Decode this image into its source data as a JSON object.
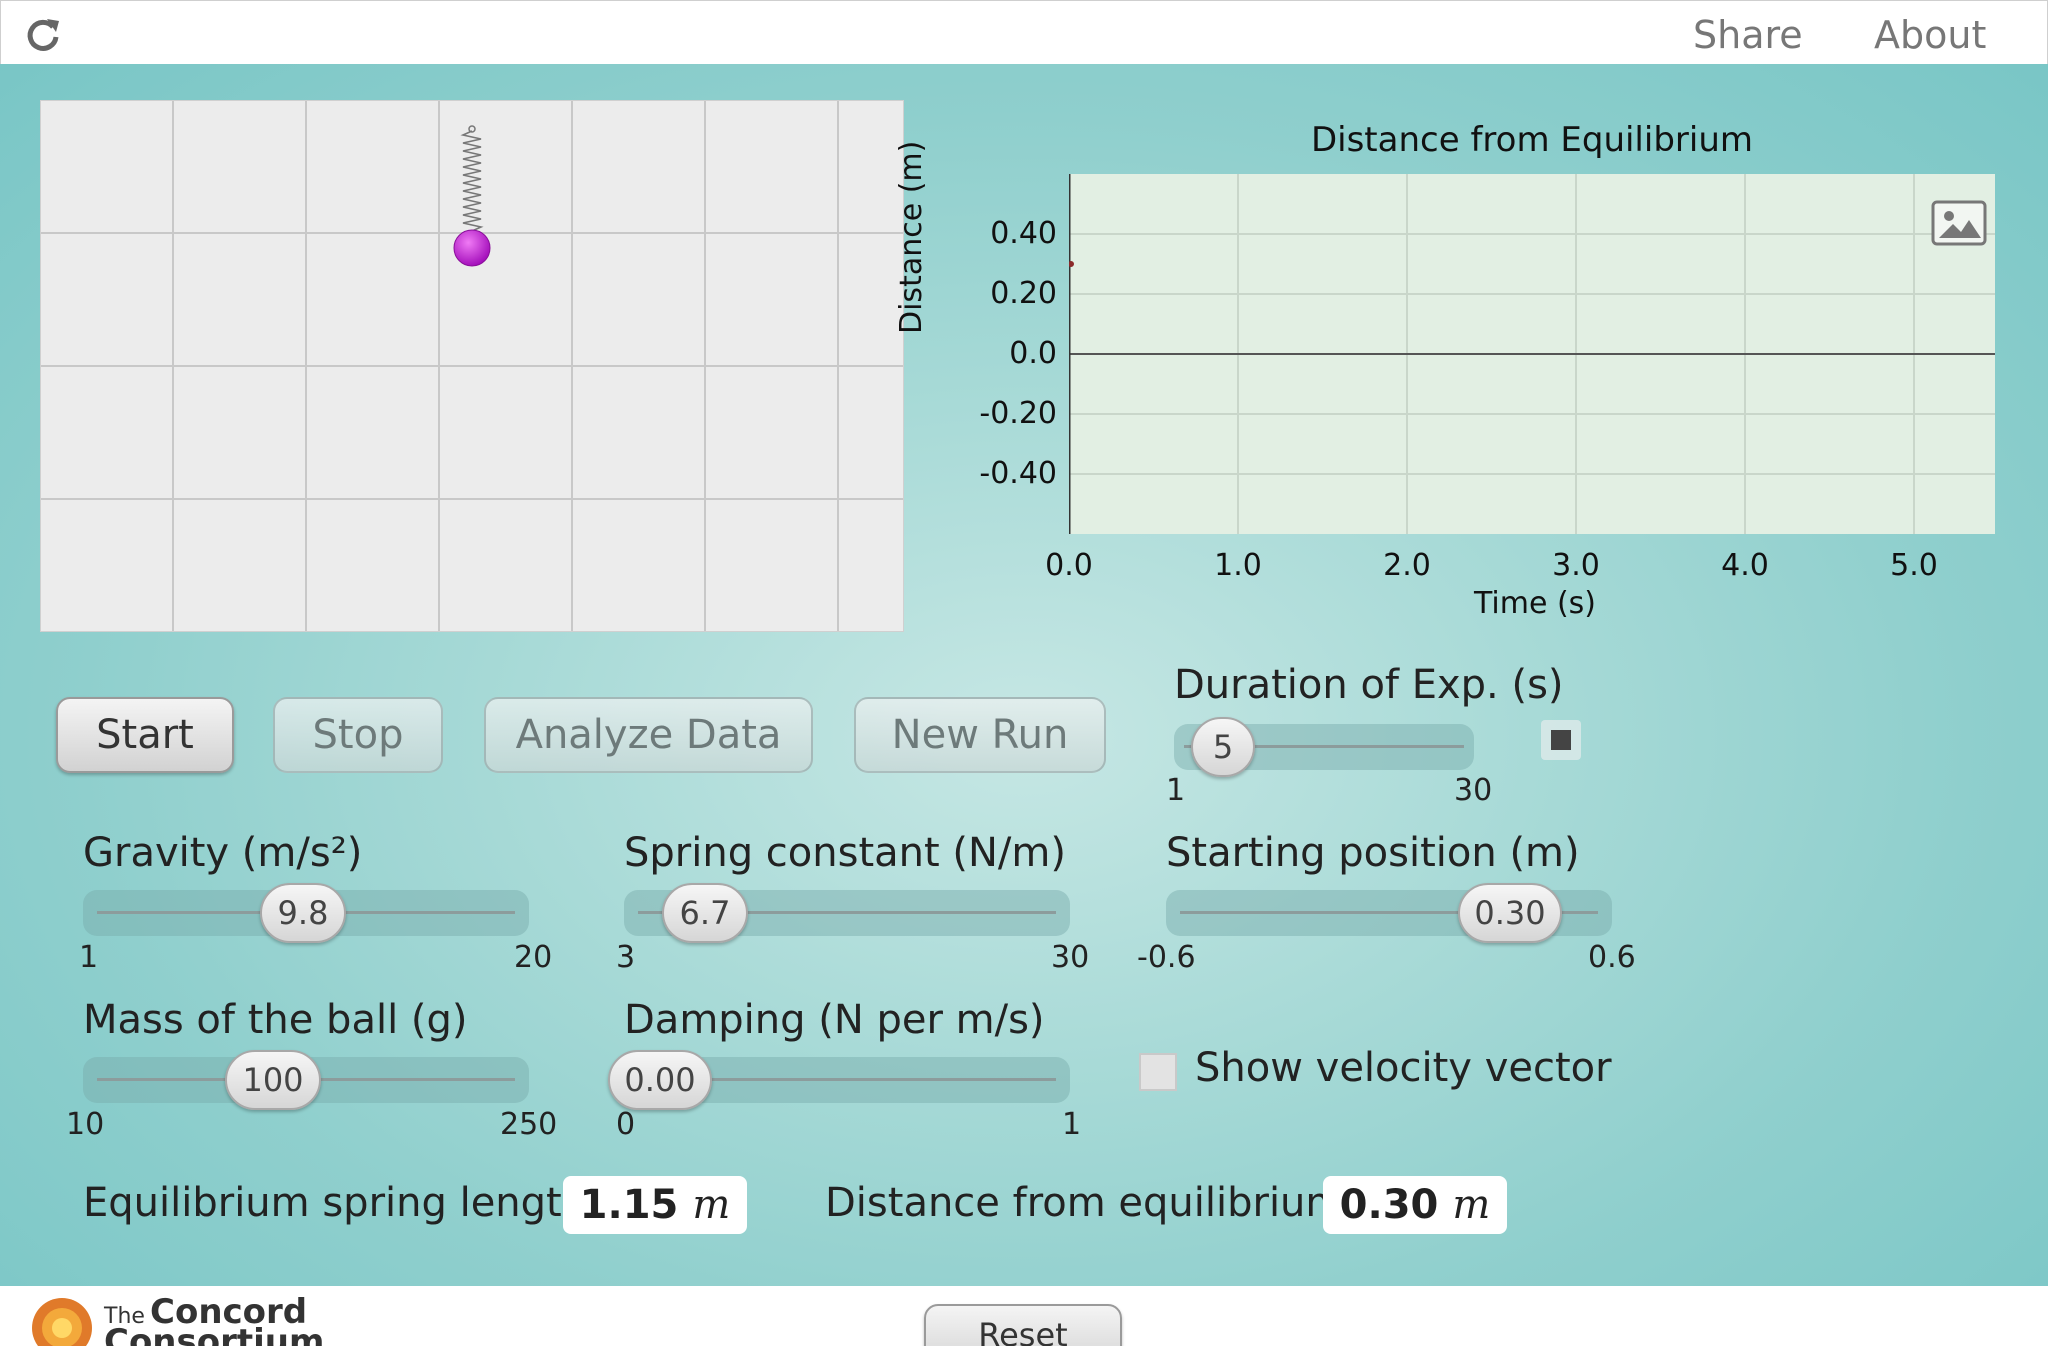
{
  "topbar": {
    "share": "Share",
    "about": "About"
  },
  "graph": {
    "title": "Distance from Equilibrium",
    "ylabel": "Distance (m)",
    "xlabel": "Time (s)",
    "yticks": [
      "0.40",
      "0.20",
      "0.0",
      "-0.20",
      "-0.40"
    ],
    "xticks": [
      "0.0",
      "1.0",
      "2.0",
      "3.0",
      "4.0",
      "5.0"
    ]
  },
  "chart_data": {
    "type": "line",
    "title": "Distance from Equilibrium",
    "xlabel": "Time (s)",
    "ylabel": "Distance (m)",
    "xlim": [
      0,
      5.5
    ],
    "ylim": [
      -0.6,
      0.6
    ],
    "grid": true,
    "series": [
      {
        "x": [
          0.0
        ],
        "y": [
          0.3
        ],
        "color": "#8b2a2a"
      }
    ]
  },
  "buttons": {
    "start": "Start",
    "stop": "Stop",
    "analyze": "Analyze Data",
    "new_run": "New Run",
    "reset": "Reset"
  },
  "duration": {
    "label": "Duration of Exp. (s)",
    "value": "5",
    "min": "1",
    "max": "30"
  },
  "gravity": {
    "label": "Gravity (m/s²)",
    "value": "9.8",
    "min": "1",
    "max": "20"
  },
  "spring": {
    "label": "Spring constant (N/m)",
    "value": "6.7",
    "min": "3",
    "max": "30"
  },
  "start_pos": {
    "label": "Starting position (m)",
    "value": "0.30",
    "min": "-0.6",
    "max": "0.6"
  },
  "mass": {
    "label": "Mass of the ball (g)",
    "value": "100",
    "min": "10",
    "max": "250"
  },
  "damping": {
    "label": "Damping (N per m/s)",
    "value": "0.00",
    "min": "0",
    "max": "1"
  },
  "velocity": {
    "label": "Show velocity vector",
    "checked": false
  },
  "equilibrium": {
    "label": "Equilibrium spring length",
    "value": "1.15",
    "unit": "m"
  },
  "distance": {
    "label": "Distance from equilibrium",
    "value": "0.30",
    "unit": "m"
  },
  "footer": {
    "logo_small": "The",
    "logo_large": "Concord",
    "logo_sub": "Consortium"
  },
  "colors": {
    "ball": "#c026d3",
    "accent": "#8fcfcd"
  }
}
